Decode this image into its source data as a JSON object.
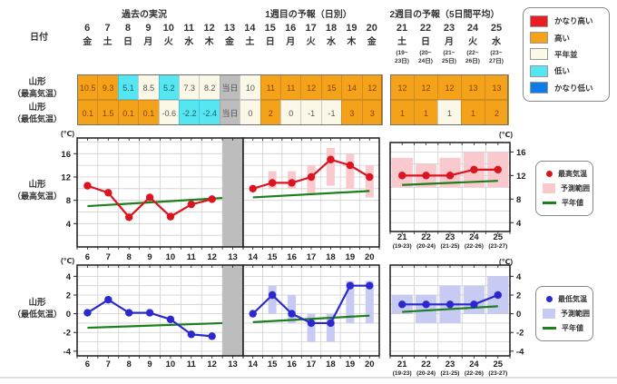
{
  "header": {
    "date_label": "日付",
    "section_past": "過去の実況",
    "section_week1": "1週目の予報（日別）",
    "section_week2": "2週目の予報（5日間平均）"
  },
  "status_colors": {
    "very_high": "#EA1C24",
    "high": "#F5A21B",
    "normal": "#FCF8E8",
    "low": "#55E6F2",
    "very_low": "#0D7BE8",
    "gray": "#BDBDBD"
  },
  "legend_top": {
    "items": [
      {
        "label": "かなり高い",
        "key": "very_high"
      },
      {
        "label": "高い",
        "key": "high"
      },
      {
        "label": "平年並",
        "key": "normal"
      },
      {
        "label": "低い",
        "key": "low"
      },
      {
        "label": "かなり低い",
        "key": "very_low"
      }
    ]
  },
  "days_main": [
    {
      "num": "6",
      "dow": "金"
    },
    {
      "num": "7",
      "dow": "土"
    },
    {
      "num": "8",
      "dow": "日"
    },
    {
      "num": "9",
      "dow": "月"
    },
    {
      "num": "10",
      "dow": "火"
    },
    {
      "num": "11",
      "dow": "水"
    },
    {
      "num": "12",
      "dow": "木"
    },
    {
      "num": "13",
      "dow": "金"
    },
    {
      "num": "14",
      "dow": "土"
    },
    {
      "num": "15",
      "dow": "日"
    },
    {
      "num": "16",
      "dow": "月"
    },
    {
      "num": "17",
      "dow": "火"
    },
    {
      "num": "18",
      "dow": "水"
    },
    {
      "num": "19",
      "dow": "木"
    },
    {
      "num": "20",
      "dow": "金"
    }
  ],
  "days_week2": [
    {
      "num": "21",
      "dow": "土",
      "range1": "(19~",
      "range2": "23日)"
    },
    {
      "num": "22",
      "dow": "日",
      "range1": "(20~",
      "range2": "24日)"
    },
    {
      "num": "23",
      "dow": "月",
      "range1": "(21~",
      "range2": "25日)"
    },
    {
      "num": "24",
      "dow": "火",
      "range1": "(22~",
      "range2": "26日)"
    },
    {
      "num": "25",
      "dow": "水",
      "range1": "(23~",
      "range2": "27日)"
    }
  ],
  "table": {
    "row_max": {
      "label1": "山形",
      "label2": "（最高気温）",
      "cells_main": [
        {
          "v": "10.5",
          "s": "high"
        },
        {
          "v": "9.3",
          "s": "high"
        },
        {
          "v": "5.1",
          "s": "low"
        },
        {
          "v": "8.5",
          "s": "normal"
        },
        {
          "v": "5.2",
          "s": "low"
        },
        {
          "v": "7.3",
          "s": "normal"
        },
        {
          "v": "8.2",
          "s": "normal"
        },
        {
          "v": "当日",
          "s": "gray"
        },
        {
          "v": "10",
          "s": "normal"
        },
        {
          "v": "11",
          "s": "high"
        },
        {
          "v": "11",
          "s": "high"
        },
        {
          "v": "12",
          "s": "high"
        },
        {
          "v": "15",
          "s": "high"
        },
        {
          "v": "14",
          "s": "high"
        },
        {
          "v": "12",
          "s": "high"
        }
      ],
      "cells_week2": [
        {
          "v": "12",
          "s": "high"
        },
        {
          "v": "12",
          "s": "high"
        },
        {
          "v": "12",
          "s": "high"
        },
        {
          "v": "13",
          "s": "high"
        },
        {
          "v": "13",
          "s": "high"
        }
      ]
    },
    "row_min": {
      "label1": "山形",
      "label2": "（最低気温）",
      "cells_main": [
        {
          "v": "0.1",
          "s": "high"
        },
        {
          "v": "1.5",
          "s": "high"
        },
        {
          "v": "0.1",
          "s": "high"
        },
        {
          "v": "0.1",
          "s": "high"
        },
        {
          "v": "-0.6",
          "s": "normal"
        },
        {
          "v": "-2.2",
          "s": "low"
        },
        {
          "v": "-2.4",
          "s": "low"
        },
        {
          "v": "当日",
          "s": "gray"
        },
        {
          "v": "0",
          "s": "normal"
        },
        {
          "v": "2",
          "s": "high"
        },
        {
          "v": "0",
          "s": "normal"
        },
        {
          "v": "-1",
          "s": "normal"
        },
        {
          "v": "-1",
          "s": "normal"
        },
        {
          "v": "3",
          "s": "high"
        },
        {
          "v": "3",
          "s": "high"
        }
      ],
      "cells_week2": [
        {
          "v": "1",
          "s": "high"
        },
        {
          "v": "1",
          "s": "high"
        },
        {
          "v": "1",
          "s": "normal"
        },
        {
          "v": "1",
          "s": "high"
        },
        {
          "v": "2",
          "s": "high"
        }
      ]
    }
  },
  "chart_data": [
    {
      "type": "line",
      "title": "山形（最高気温）",
      "label1": "山形",
      "label2": "（最高気温）",
      "unit": "(℃)",
      "ylim": [
        0,
        18.7
      ],
      "yticks": [
        4,
        8,
        12,
        16
      ],
      "grid_step": 2,
      "colors": {
        "line": "#DC1420",
        "range": "#F9C9CD",
        "normal": "#1B7F1B",
        "grayed": "#BDBDBD"
      },
      "panels": [
        {
          "name": "past",
          "x": [
            "6",
            "7",
            "8",
            "9",
            "10",
            "11",
            "12",
            "13"
          ],
          "values": [
            10.5,
            9.3,
            5.1,
            8.5,
            5.2,
            7.3,
            8.2,
            null
          ],
          "grayed_index": 7,
          "normal_line": [
            7.0,
            8.4
          ]
        },
        {
          "name": "week1",
          "x": [
            "14",
            "15",
            "16",
            "17",
            "18",
            "19",
            "20"
          ],
          "values": [
            10,
            11,
            11,
            12,
            15,
            14,
            12
          ],
          "ranges": [
            null,
            [
              10,
              13
            ],
            [
              10,
              13
            ],
            [
              9,
              14
            ],
            [
              10.5,
              17
            ],
            [
              10,
              16
            ],
            [
              8.5,
              14
            ]
          ],
          "normal_line": [
            8.5,
            9.6
          ]
        },
        {
          "name": "week2",
          "x": [
            "21",
            "22",
            "23",
            "24",
            "25"
          ],
          "sub": [
            "(19-23)",
            "(20-24)",
            "(21-25)",
            "(22-26)",
            "(23-27)"
          ],
          "values": [
            12,
            12,
            12,
            13,
            13
          ],
          "ranges": [
            [
              10,
              15
            ],
            [
              10,
              14
            ],
            [
              10,
              15
            ],
            [
              10,
              16
            ],
            [
              10,
              16
            ]
          ],
          "normal_line": [
            10.4,
            11.1
          ],
          "ylim": [
            2.5,
            17.6
          ]
        }
      ],
      "legend": [
        {
          "marker": "dot",
          "label": "最高気温"
        },
        {
          "marker": "box",
          "label": "予測範囲"
        },
        {
          "marker": "line",
          "label": "平年値"
        }
      ]
    },
    {
      "type": "line",
      "title": "山形（最低気温）",
      "label1": "山形",
      "label2": "（最低気温）",
      "unit": "(℃)",
      "ylim": [
        -4.5,
        5.2
      ],
      "yticks": [
        -4,
        -2,
        0,
        2,
        4
      ],
      "grid_step": 1,
      "colors": {
        "line": "#2B28CE",
        "range": "#C7CAF2",
        "normal": "#1B7F1B",
        "grayed": "#BDBDBD"
      },
      "panels": [
        {
          "name": "past",
          "x": [
            "6",
            "7",
            "8",
            "9",
            "10",
            "11",
            "12",
            "13"
          ],
          "values": [
            0.1,
            1.5,
            0.1,
            0.1,
            -0.6,
            -2.2,
            -2.4,
            null
          ],
          "grayed_index": 7,
          "normal_line": [
            -1.5,
            -1.0
          ]
        },
        {
          "name": "week1",
          "x": [
            "14",
            "15",
            "16",
            "17",
            "18",
            "19",
            "20"
          ],
          "values": [
            0,
            2,
            0,
            -1,
            -1,
            3,
            3
          ],
          "ranges": [
            null,
            [
              0,
              3
            ],
            [
              -1,
              2
            ],
            [
              -3,
              0
            ],
            [
              -3,
              0
            ],
            [
              -1,
              3.5
            ],
            [
              -1,
              3.5
            ]
          ],
          "normal_line": [
            -0.9,
            -0.2
          ]
        },
        {
          "name": "week2",
          "x": [
            "21",
            "22",
            "23",
            "24",
            "25"
          ],
          "sub": [
            "(19-23)",
            "(20-24)",
            "(21-25)",
            "(22-26)",
            "(23-27)"
          ],
          "values": [
            1,
            1,
            1,
            1,
            2
          ],
          "ranges": [
            [
              0,
              2
            ],
            [
              -1,
              2
            ],
            [
              -1,
              3
            ],
            [
              0,
              3
            ],
            [
              0,
              4
            ]
          ],
          "normal_line": [
            0.2,
            0.8
          ]
        }
      ],
      "legend": [
        {
          "marker": "dot",
          "label": "最低気温"
        },
        {
          "marker": "box",
          "label": "予測範囲"
        },
        {
          "marker": "line",
          "label": "平年値"
        }
      ]
    }
  ]
}
